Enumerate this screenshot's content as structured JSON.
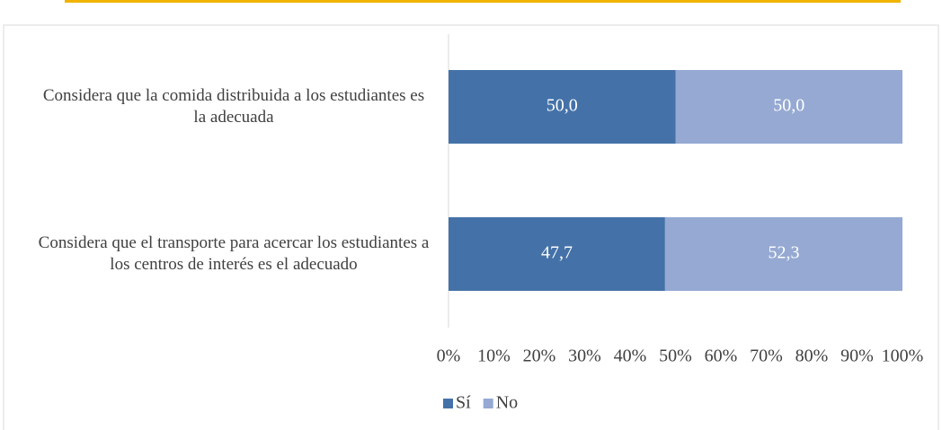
{
  "chart_data": {
    "type": "stacked-bar-horizontal",
    "categories": [
      "Considera que la comida distribuida a los estudiantes es la adecuada",
      "Considera que el transporte para acercar los estudiantes a los centros de interés es el adecuado"
    ],
    "series": [
      {
        "name": "Sí",
        "color": "#4472a8",
        "values": [
          50.0,
          47.7
        ],
        "value_labels": [
          "50,0",
          "47,7"
        ]
      },
      {
        "name": "No",
        "color": "#95a9d2",
        "values": [
          50.0,
          52.3
        ],
        "value_labels": [
          "50,0",
          "52,3"
        ]
      }
    ],
    "xlim": [
      0,
      100
    ],
    "xticks": [
      {
        "value": 0,
        "label": "0%"
      },
      {
        "value": 10,
        "label": "10%"
      },
      {
        "value": 20,
        "label": "20%"
      },
      {
        "value": 30,
        "label": "30%"
      },
      {
        "value": 40,
        "label": "40%"
      },
      {
        "value": 50,
        "label": "50%"
      },
      {
        "value": 60,
        "label": "60%"
      },
      {
        "value": 70,
        "label": "70%"
      },
      {
        "value": 80,
        "label": "80%"
      },
      {
        "value": 90,
        "label": "90%"
      },
      {
        "value": 100,
        "label": "100%"
      }
    ],
    "legend": "bottom"
  }
}
